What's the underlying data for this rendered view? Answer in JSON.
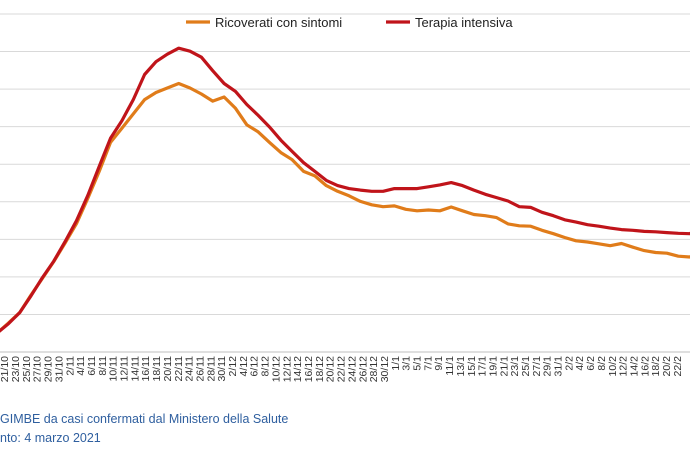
{
  "footer": {
    "source": "GIMBE da casi confermati dal Ministero della Salute",
    "update": "nto: 4 marzo 2021"
  },
  "chart_data": {
    "type": "line",
    "title": "",
    "xlabel": "",
    "ylabel": "",
    "grid": "horizontal",
    "legend_position": "top",
    "x_ticks": [
      "21/10",
      "23/10",
      "25/10",
      "27/10",
      "29/10",
      "31/10",
      "2/11",
      "4/11",
      "6/11",
      "8/11",
      "10/11",
      "12/11",
      "14/11",
      "16/11",
      "18/11",
      "20/11",
      "22/11",
      "24/11",
      "26/11",
      "28/11",
      "30/11",
      "2/12",
      "4/12",
      "6/12",
      "8/12",
      "10/12",
      "12/12",
      "14/12",
      "16/12",
      "18/12",
      "20/12",
      "22/12",
      "24/12",
      "26/12",
      "28/12",
      "30/12",
      "1/1",
      "3/1",
      "5/1",
      "7/1",
      "9/1",
      "11/1",
      "13/1",
      "15/1",
      "17/1",
      "19/1",
      "21/1",
      "23/1",
      "25/1",
      "27/1",
      "29/1",
      "31/1",
      "2/2",
      "4/2",
      "6/2",
      "8/2",
      "10/2",
      "12/2",
      "14/2",
      "16/2",
      "18/2",
      "20/2",
      "22/2"
    ],
    "series": [
      {
        "name": "Ricoverati con sintomi",
        "color": "#e07c1a",
        "values": [
          5.0,
          7.7,
          10.5,
          15.2,
          19.6,
          24.1,
          29.0,
          34.2,
          40.9,
          48.1,
          55.8,
          59.6,
          63.4,
          67.2,
          69.1,
          70.3,
          71.5,
          70.3,
          68.7,
          66.8,
          67.9,
          64.9,
          60.5,
          58.6,
          55.8,
          53.1,
          51.2,
          48.1,
          46.9,
          44.3,
          42.8,
          41.6,
          40.1,
          39.2,
          38.7,
          38.9,
          38.0,
          37.6,
          37.8,
          37.6,
          38.6,
          37.6,
          36.6,
          36.3,
          35.8,
          34.1,
          33.6,
          33.5,
          32.4,
          31.5,
          30.5,
          29.6,
          29.3,
          28.8,
          28.3,
          28.9,
          27.9,
          27.0,
          26.5,
          26.3,
          25.5,
          25.3,
          26.5
        ]
      },
      {
        "name": "Terapia intensiva",
        "color": "#c0141a",
        "values": [
          5.0,
          7.5,
          10.5,
          15.0,
          19.8,
          24.2,
          29.4,
          35.0,
          41.7,
          49.4,
          56.9,
          61.6,
          67.2,
          73.9,
          77.3,
          79.3,
          80.9,
          80.1,
          78.5,
          74.9,
          71.5,
          69.4,
          65.9,
          63.0,
          59.9,
          56.4,
          53.4,
          50.4,
          48.1,
          45.7,
          44.3,
          43.5,
          43.1,
          42.8,
          42.8,
          43.5,
          43.5,
          43.5,
          44.0,
          44.5,
          45.1,
          44.3,
          43.1,
          42.0,
          41.1,
          40.2,
          38.7,
          38.5,
          37.2,
          36.3,
          35.2,
          34.6,
          33.9,
          33.5,
          33.0,
          32.6,
          32.4,
          32.1,
          32.0,
          31.8,
          31.6,
          31.5,
          33.0
        ]
      }
    ]
  }
}
